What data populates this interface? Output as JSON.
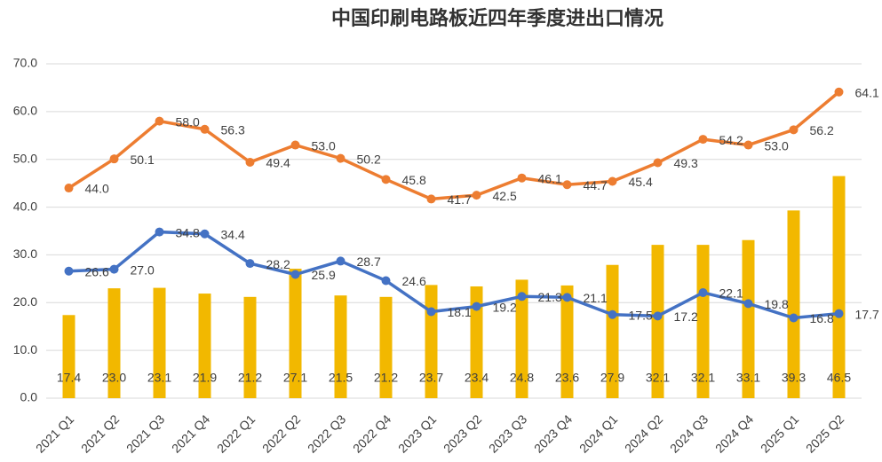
{
  "chart_data": {
    "type": "combo",
    "title": "中国印刷电路板近四年季度进出口情况",
    "categories": [
      "2021 Q1",
      "2021 Q2",
      "2021 Q3",
      "2021 Q4",
      "2022 Q1",
      "2022 Q2",
      "2022 Q3",
      "2022 Q4",
      "2023 Q1",
      "2023 Q2",
      "2023 Q3",
      "2023 Q4",
      "2024 Q1",
      "2024 Q2",
      "2024 Q3",
      "2024 Q4",
      "2025 Q1",
      "2025 Q2"
    ],
    "series": [
      {
        "type": "bar",
        "color": "#f2b800",
        "values": [
          17.4,
          23.0,
          23.1,
          21.9,
          21.2,
          27.1,
          21.5,
          21.2,
          23.7,
          23.4,
          24.8,
          23.6,
          27.9,
          32.1,
          32.1,
          33.1,
          39.3,
          46.5
        ],
        "value_labels": [
          "17.4",
          "23.0",
          "23.1",
          "21.9",
          "21.2",
          "27.1",
          "21.5",
          "21.2",
          "23.7",
          "23.4",
          "24.8",
          "23.6",
          "27.9",
          "32.1",
          "32.1",
          "33.1",
          "39.3",
          "46.5"
        ]
      },
      {
        "type": "line",
        "color": "#ed7d31",
        "values": [
          44.0,
          50.1,
          58.0,
          56.3,
          49.4,
          53.0,
          50.2,
          45.8,
          41.7,
          42.5,
          46.1,
          44.7,
          45.4,
          49.3,
          54.2,
          53.0,
          56.2,
          64.1
        ],
        "value_labels": [
          "44.0",
          "50.1",
          "58.0",
          "56.3",
          "49.4",
          "53.0",
          "50.2",
          "45.8",
          "41.7",
          "42.5",
          "46.1",
          "44.7",
          "45.4",
          "49.3",
          "54.2",
          "53.0",
          "56.2",
          "64.1"
        ]
      },
      {
        "type": "line",
        "color": "#4472c4",
        "values": [
          26.6,
          27.0,
          34.8,
          34.4,
          28.2,
          25.9,
          28.7,
          24.6,
          18.1,
          19.2,
          21.3,
          21.1,
          17.5,
          17.2,
          22.1,
          19.8,
          16.8,
          17.7
        ],
        "value_labels": [
          "26.6",
          "27.0",
          "34.8",
          "34.4",
          "28.2",
          "25.9",
          "28.7",
          "24.6",
          "18.1",
          "19.2",
          "21.3",
          "21.1",
          "17.5",
          "17.2",
          "22.1",
          "19.8",
          "16.8",
          "17.7"
        ]
      }
    ],
    "ylim": [
      0,
      70
    ],
    "yticks": [
      {
        "value": 0,
        "label": "0.0"
      },
      {
        "value": 10,
        "label": "10.0"
      },
      {
        "value": 20,
        "label": "20.0"
      },
      {
        "value": 30,
        "label": "30.0"
      },
      {
        "value": 40,
        "label": "40.0"
      },
      {
        "value": 50,
        "label": "50.0"
      },
      {
        "value": 60,
        "label": "60.0"
      },
      {
        "value": 70,
        "label": "70.0"
      }
    ],
    "grid": true
  }
}
